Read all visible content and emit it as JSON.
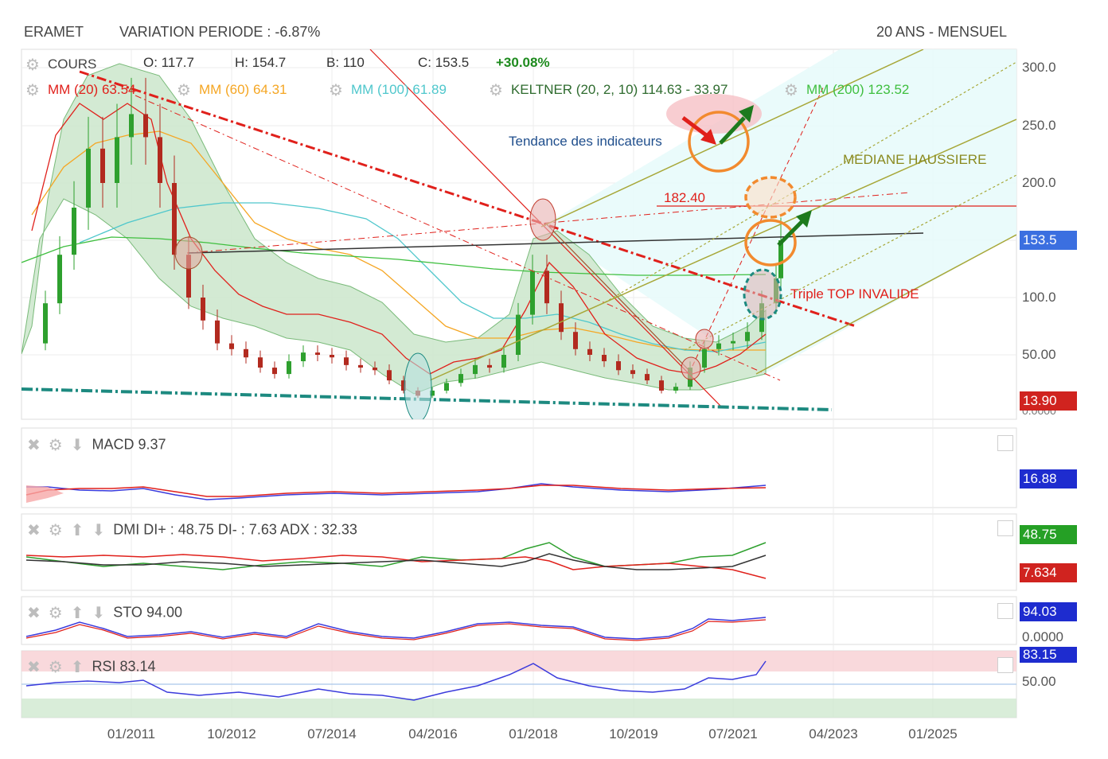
{
  "header": {
    "symbol": "ERAMET",
    "variation": "VARIATION PERIODE : -6.87%",
    "period": "20 ANS - MENSUEL"
  },
  "legend": {
    "cours": "COURS",
    "open": "O: 117.7",
    "high": "H: 154.7",
    "low": "B: 110",
    "close": "C: 153.5",
    "change": "+30.08%",
    "mm20": "MM (20) 63.54",
    "mm60": "MM (60) 64.31",
    "mm100": "MM (100) 61.89",
    "keltner": "KELTNER (20, 2, 10) 114.63 - 33.97",
    "mm200": "MM (200) 123.52"
  },
  "annotations": {
    "tendance": "Tendance des indicateurs",
    "mediane": "MEDIANE HAUSSIERE",
    "level": "182.40",
    "triple_top": "Triple TOP INVALIDE"
  },
  "colors": {
    "mm20": "#e0201b",
    "mm60": "#f5a623",
    "mm100": "#4fc7cc",
    "keltner": "#2e7d32",
    "mm200": "#3fbf3f",
    "channel": "#a7a738",
    "tendance": "#1f4e8c"
  },
  "axes": {
    "price_ticks": [
      "300.0",
      "250.0",
      "200.0",
      "100.0",
      "50.00"
    ],
    "x_ticks": [
      "01/2011",
      "10/2012",
      "07/2014",
      "04/2016",
      "01/2018",
      "10/2019",
      "07/2021",
      "04/2023",
      "01/2025"
    ],
    "price_tag": "153.5",
    "low_tag": "13.90",
    "low_tag_under": "0.0000"
  },
  "panels": {
    "macd": {
      "label": "MACD",
      "value": "9.37",
      "tag": "16.88"
    },
    "dmi": {
      "label": "DMI",
      "values": "DI+ : 48.75 DI- : 7.63 ADX : 32.33",
      "tag_plus": "48.75",
      "tag_minus": "7.634"
    },
    "sto": {
      "label": "STO",
      "value": "94.00",
      "tag": "94.03",
      "scale": "0.0000"
    },
    "rsi": {
      "label": "RSI",
      "value": "83.14",
      "tag": "83.15",
      "scale": "50.00"
    }
  },
  "chart_data": {
    "type": "candlestick",
    "title": "ERAMET",
    "subtitle": "20 ANS - MENSUEL",
    "xlabel": "",
    "ylabel": "",
    "grid": true,
    "legend_position": "top-left",
    "last_candle": {
      "open": 117.7,
      "high": 154.7,
      "low": 110,
      "close": 153.5,
      "change_pct": 30.08
    },
    "x_ticks": [
      "01/2011",
      "10/2012",
      "07/2014",
      "04/2016",
      "01/2018",
      "10/2019",
      "07/2021",
      "04/2023",
      "01/2025"
    ],
    "y_ticks": [
      50,
      100,
      200,
      250,
      300
    ],
    "close_series": [
      {
        "date": "2009-04",
        "value": 60
      },
      {
        "date": "2009-07",
        "value": 95
      },
      {
        "date": "2009-10",
        "value": 140
      },
      {
        "date": "2010-01",
        "value": 180
      },
      {
        "date": "2010-04",
        "value": 230
      },
      {
        "date": "2010-07",
        "value": 200
      },
      {
        "date": "2010-10",
        "value": 240
      },
      {
        "date": "2011-01",
        "value": 260
      },
      {
        "date": "2011-04",
        "value": 240
      },
      {
        "date": "2011-07",
        "value": 200
      },
      {
        "date": "2011-10",
        "value": 140
      },
      {
        "date": "2012-01",
        "value": 100
      },
      {
        "date": "2012-04",
        "value": 80
      },
      {
        "date": "2012-07",
        "value": 60
      },
      {
        "date": "2012-10",
        "value": 55
      },
      {
        "date": "2013-01",
        "value": 48
      },
      {
        "date": "2013-04",
        "value": 40
      },
      {
        "date": "2013-07",
        "value": 35
      },
      {
        "date": "2013-10",
        "value": 45
      },
      {
        "date": "2014-01",
        "value": 52
      },
      {
        "date": "2014-04",
        "value": 50
      },
      {
        "date": "2014-07",
        "value": 48
      },
      {
        "date": "2014-10",
        "value": 42
      },
      {
        "date": "2015-01",
        "value": 40
      },
      {
        "date": "2015-04",
        "value": 38
      },
      {
        "date": "2015-07",
        "value": 30
      },
      {
        "date": "2015-10",
        "value": 22
      },
      {
        "date": "2016-01",
        "value": 18
      },
      {
        "date": "2016-04",
        "value": 22
      },
      {
        "date": "2016-07",
        "value": 28
      },
      {
        "date": "2016-10",
        "value": 35
      },
      {
        "date": "2017-01",
        "value": 42
      },
      {
        "date": "2017-04",
        "value": 40
      },
      {
        "date": "2017-07",
        "value": 50
      },
      {
        "date": "2017-10",
        "value": 85
      },
      {
        "date": "2018-01",
        "value": 125
      },
      {
        "date": "2018-04",
        "value": 95
      },
      {
        "date": "2018-07",
        "value": 70
      },
      {
        "date": "2018-10",
        "value": 55
      },
      {
        "date": "2019-01",
        "value": 50
      },
      {
        "date": "2019-04",
        "value": 45
      },
      {
        "date": "2019-07",
        "value": 38
      },
      {
        "date": "2019-10",
        "value": 35
      },
      {
        "date": "2020-01",
        "value": 30
      },
      {
        "date": "2020-04",
        "value": 22
      },
      {
        "date": "2020-07",
        "value": 25
      },
      {
        "date": "2020-10",
        "value": 40
      },
      {
        "date": "2021-01",
        "value": 55
      },
      {
        "date": "2021-04",
        "value": 60
      },
      {
        "date": "2021-07",
        "value": 62
      },
      {
        "date": "2021-10",
        "value": 70
      },
      {
        "date": "2022-01",
        "value": 95
      },
      {
        "date": "2022-04",
        "value": 118
      },
      {
        "date": "2022-05",
        "value": 153.5
      }
    ],
    "indicators": {
      "MM20": 63.54,
      "MM60": 64.31,
      "MM100": 61.89,
      "MM200": 123.52,
      "KELTNER_upper": 114.63,
      "KELTNER_lower": 33.97
    },
    "levels": {
      "resistance": 182.4,
      "current": 153.5,
      "low": 13.9
    },
    "sub_indicators": {
      "MACD": 9.37,
      "DI_plus": 48.75,
      "DI_minus": 7.63,
      "ADX": 32.33,
      "STO": 94.0,
      "RSI": 83.14
    }
  }
}
